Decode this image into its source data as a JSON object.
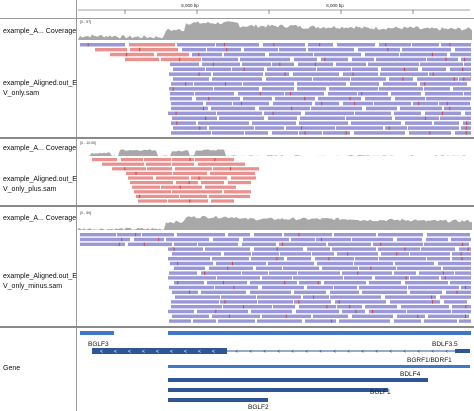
{
  "ruler": {
    "ticks": [
      "5,000 bp",
      "6,000 bp"
    ]
  },
  "tracks": [
    {
      "coverage_label": "example_A... Coverage",
      "scale": "[0 - 57]",
      "reads_label_line1": "example_Aligned.out_EB",
      "reads_label_line2": "V_only.sam"
    },
    {
      "coverage_label": "example_A... Coverage",
      "scale": "[0 - 10.00]",
      "reads_label_line1": "example_Aligned.out_EB",
      "reads_label_line2": "V_only_plus.sam"
    },
    {
      "coverage_label": "example_A... Coverage",
      "scale": "[0 - 50]",
      "reads_label_line1": "example_Aligned.out_EB",
      "reads_label_line2": "V_only_minus.sam"
    }
  ],
  "gene_track": {
    "label": "Gene",
    "genes": [
      "BGLF3",
      "BDLF3.5",
      "BGRF1/BDRF1",
      "BDLF4",
      "BGLF1",
      "BGLF2"
    ]
  },
  "colors": {
    "coverage": "#a8a8a8",
    "minus_read": "#9a98d8",
    "plus_read": "#e8918e",
    "gene": "#2e5597",
    "gene_light": "#3f78c9",
    "mismatch": "#d04040"
  }
}
